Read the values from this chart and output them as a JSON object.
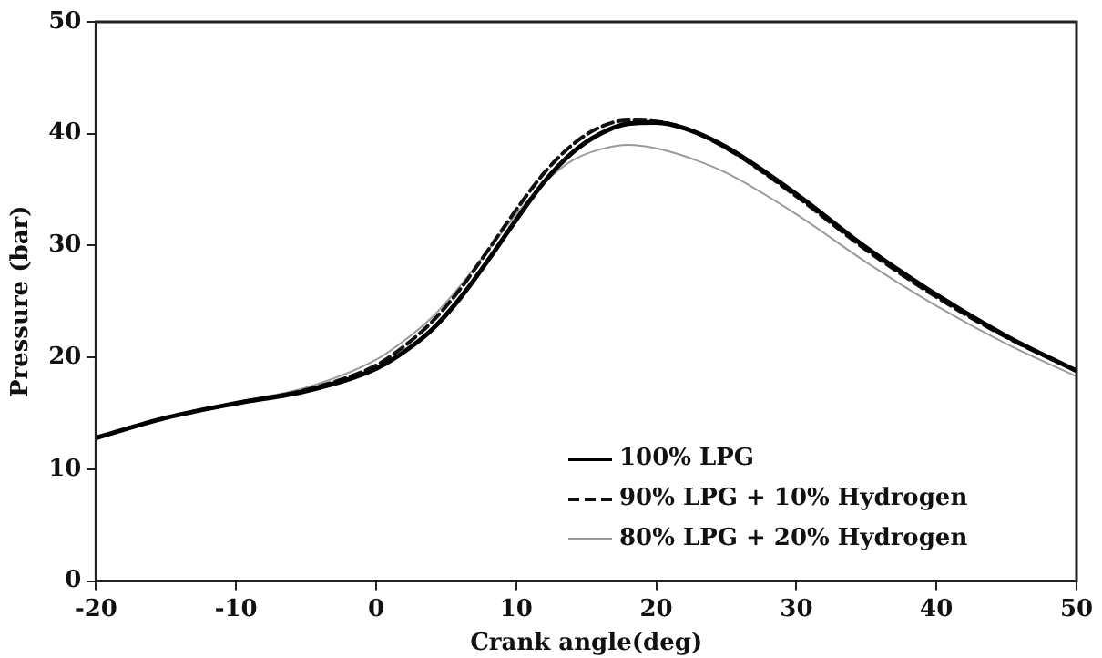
{
  "chart_data": {
    "type": "line",
    "xlabel": "Crank angle(deg)",
    "ylabel": "Pressure (bar)",
    "x": [
      -20,
      -15,
      -10,
      -5,
      0,
      2,
      4,
      6,
      8,
      10,
      12,
      14,
      16,
      18,
      20,
      22,
      25,
      30,
      35,
      40,
      45,
      50
    ],
    "series": [
      {
        "name": "100% LPG",
        "color": "#000000",
        "line_style": "solid",
        "values": [
          12.8,
          14.6,
          15.9,
          17.0,
          19.0,
          20.5,
          22.5,
          25.3,
          28.7,
          32.3,
          35.7,
          38.3,
          40.0,
          40.9,
          41.0,
          40.5,
          38.8,
          34.6,
          29.8,
          25.6,
          21.9,
          18.8
        ]
      },
      {
        "name": "90% LPG + 10% Hydrogen",
        "color": "#111111",
        "line_style": "dashed",
        "values": [
          12.8,
          14.6,
          15.9,
          17.1,
          19.3,
          21.0,
          23.2,
          26.1,
          29.6,
          33.2,
          36.5,
          39.0,
          40.6,
          41.2,
          41.1,
          40.5,
          38.7,
          34.4,
          29.6,
          25.4,
          21.8,
          18.8
        ]
      },
      {
        "name": "80% LPG + 20% Hydrogen",
        "color": "#9a9a9a",
        "line_style": "solid",
        "values": [
          12.8,
          14.6,
          16.0,
          17.3,
          19.8,
          21.5,
          23.6,
          26.4,
          29.6,
          32.8,
          35.6,
          37.6,
          38.6,
          39.0,
          38.7,
          38.0,
          36.5,
          32.8,
          28.5,
          24.6,
          21.2,
          18.3
        ]
      }
    ],
    "xlim": [
      -20,
      50
    ],
    "xticks": [
      -20,
      -10,
      0,
      10,
      20,
      30,
      40,
      50
    ],
    "ylim": [
      0,
      50
    ],
    "yticks": [
      0,
      10,
      20,
      30,
      40,
      50
    ],
    "grid": false,
    "legend": "bottom right",
    "marker": "none"
  }
}
